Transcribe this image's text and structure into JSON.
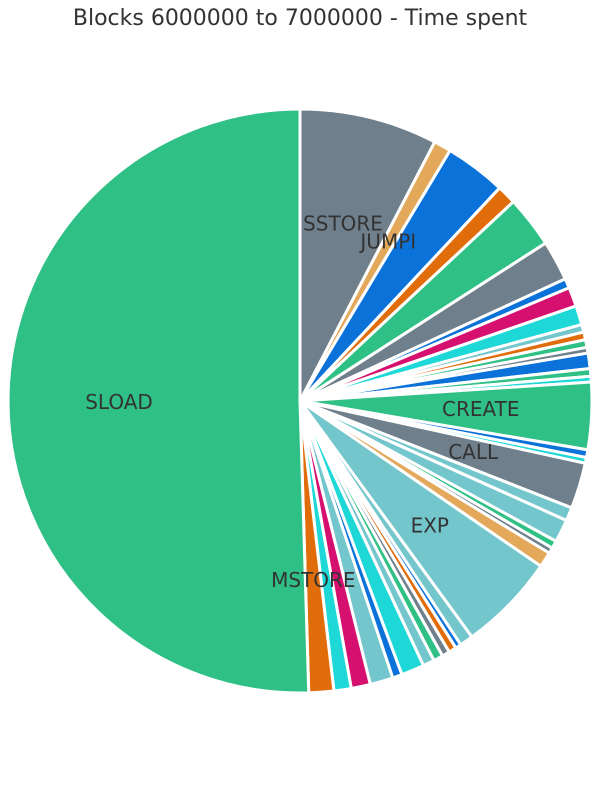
{
  "chart_data": {
    "type": "pie",
    "title": "Blocks 6000000 to 7000000 - Time spent",
    "start_angle_deg": 270,
    "slices": [
      {
        "label": "SSTORE",
        "value": 7.2,
        "color": "#6f7f8b"
      },
      {
        "label": "JUMPI",
        "value": 0.9,
        "color": "#e3a85a"
      },
      {
        "label": "",
        "value": 3.2,
        "color": "#0b72d9"
      },
      {
        "label": "",
        "value": 1.0,
        "color": "#e06c0a"
      },
      {
        "label": "",
        "value": 2.7,
        "color": "#2ec084"
      },
      {
        "label": "",
        "value": 2.1,
        "color": "#6f7f8b"
      },
      {
        "label": "",
        "value": 0.5,
        "color": "#0b72d9"
      },
      {
        "label": "",
        "value": 1.0,
        "color": "#d6106f"
      },
      {
        "label": "",
        "value": 1.0,
        "color": "#1ed8d8"
      },
      {
        "label": "",
        "value": 0.4,
        "color": "#72c6cc"
      },
      {
        "label": "",
        "value": 0.4,
        "color": "#e06c0a"
      },
      {
        "label": "",
        "value": 0.4,
        "color": "#2ec084"
      },
      {
        "label": "",
        "value": 0.3,
        "color": "#6f7f8b"
      },
      {
        "label": "",
        "value": 0.8,
        "color": "#0b72d9"
      },
      {
        "label": "",
        "value": 0.4,
        "color": "#2ec084"
      },
      {
        "label": "",
        "value": 0.3,
        "color": "#1ed8d8"
      },
      {
        "label": "CREATE",
        "value": 3.5,
        "color": "#2ec084"
      },
      {
        "label": "",
        "value": 0.4,
        "color": "#0b72d9"
      },
      {
        "label": "",
        "value": 0.3,
        "color": "#1ed8d8"
      },
      {
        "label": "CALL",
        "value": 2.4,
        "color": "#6f7f8b"
      },
      {
        "label": "",
        "value": 0.7,
        "color": "#72c6cc"
      },
      {
        "label": "",
        "value": 1.2,
        "color": "#72c6cc"
      },
      {
        "label": "",
        "value": 0.4,
        "color": "#2ec084"
      },
      {
        "label": "",
        "value": 0.3,
        "color": "#6f7f8b"
      },
      {
        "label": "",
        "value": 0.8,
        "color": "#e3a85a"
      },
      {
        "label": "EXP",
        "value": 5.1,
        "color": "#72c6cc"
      },
      {
        "label": "",
        "value": 0.7,
        "color": "#72c6cc"
      },
      {
        "label": "",
        "value": 0.3,
        "color": "#0b72d9"
      },
      {
        "label": "",
        "value": 0.4,
        "color": "#e06c0a"
      },
      {
        "label": "",
        "value": 0.4,
        "color": "#6f7f8b"
      },
      {
        "label": "",
        "value": 0.5,
        "color": "#2ec084"
      },
      {
        "label": "",
        "value": 0.6,
        "color": "#72c6cc"
      },
      {
        "label": "",
        "value": 1.2,
        "color": "#1ed8d8"
      },
      {
        "label": "",
        "value": 0.5,
        "color": "#0b72d9"
      },
      {
        "label": "",
        "value": 1.2,
        "color": "#72c6cc"
      },
      {
        "label": "",
        "value": 1.0,
        "color": "#d6106f"
      },
      {
        "label": "",
        "value": 0.9,
        "color": "#1ed8d8"
      },
      {
        "label": "MSTORE",
        "value": 1.3,
        "color": "#e06c0a"
      },
      {
        "label": "SLOAD",
        "value": 47.6,
        "color": "#2ec084"
      }
    ]
  }
}
